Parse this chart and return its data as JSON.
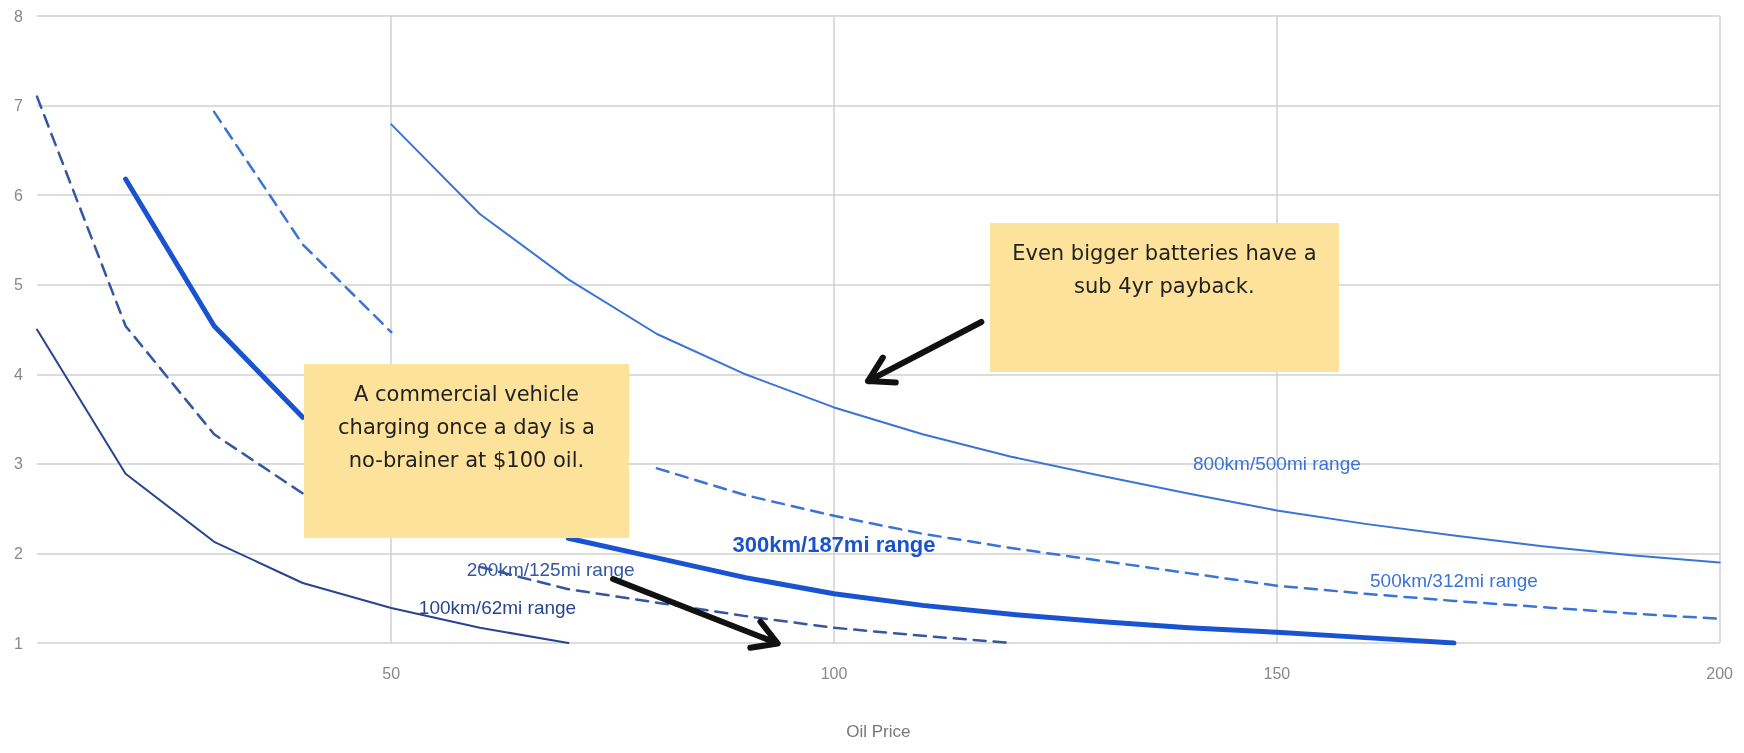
{
  "chart_data": {
    "type": "line",
    "xlabel": "Oil Price",
    "x": [
      10,
      20,
      30,
      40,
      50,
      60,
      70,
      80,
      90,
      100,
      110,
      120,
      130,
      140,
      150,
      160,
      170,
      180,
      190,
      200
    ],
    "series": [
      {
        "name": "100km/62mi range",
        "color": "#27448f",
        "line_style": "solid",
        "values": [
          4.5,
          2.89,
          2.13,
          1.67,
          1.39,
          1.17,
          1.0,
          null,
          null,
          null,
          null,
          null,
          null,
          null,
          null,
          null,
          null,
          null,
          null,
          null
        ]
      },
      {
        "name": "200km/125mi range",
        "color": "#34579f",
        "line_style": "dashed",
        "values": [
          7.1,
          4.54,
          3.33,
          2.67,
          null,
          1.85,
          1.6,
          1.45,
          1.3,
          1.17,
          1.08,
          1.0,
          null,
          null,
          null,
          null,
          null,
          null,
          null,
          null
        ]
      },
      {
        "name": "300km/187mi range",
        "color": "#1a53d0",
        "line_style": "solid",
        "values": [
          null,
          6.18,
          4.54,
          3.52,
          null,
          null,
          2.17,
          1.95,
          1.73,
          1.55,
          1.42,
          1.32,
          1.24,
          1.17,
          1.12,
          1.06,
          1.0,
          null,
          null,
          null
        ]
      },
      {
        "name": "500km/312mi range",
        "color": "#3b73d6",
        "line_style": "dashed",
        "values": [
          null,
          null,
          6.93,
          5.45,
          4.47,
          null,
          null,
          2.95,
          2.65,
          2.42,
          2.22,
          2.06,
          1.92,
          1.78,
          1.64,
          1.55,
          1.47,
          1.4,
          1.33,
          1.27
        ]
      },
      {
        "name": "800km/500mi range",
        "color": "#3b73d6",
        "line_style": "solid",
        "values": [
          null,
          null,
          null,
          null,
          6.79,
          5.79,
          5.06,
          4.45,
          4.0,
          3.63,
          3.33,
          3.08,
          2.87,
          2.67,
          2.48,
          2.33,
          2.2,
          2.08,
          1.98,
          1.9
        ]
      }
    ],
    "xlim": [
      10,
      200
    ],
    "xticks": [
      50,
      100,
      150,
      200
    ],
    "ylim": [
      1,
      8
    ],
    "yticks": [
      1,
      2,
      3,
      4,
      5,
      6,
      7,
      8
    ],
    "grid": true,
    "legend": false,
    "marker": "none",
    "annotations": [
      "A commercial vehicle charging once a day is a no-brainer at $100 oil.",
      "Even bigger batteries have a sub 4yr payback."
    ]
  }
}
